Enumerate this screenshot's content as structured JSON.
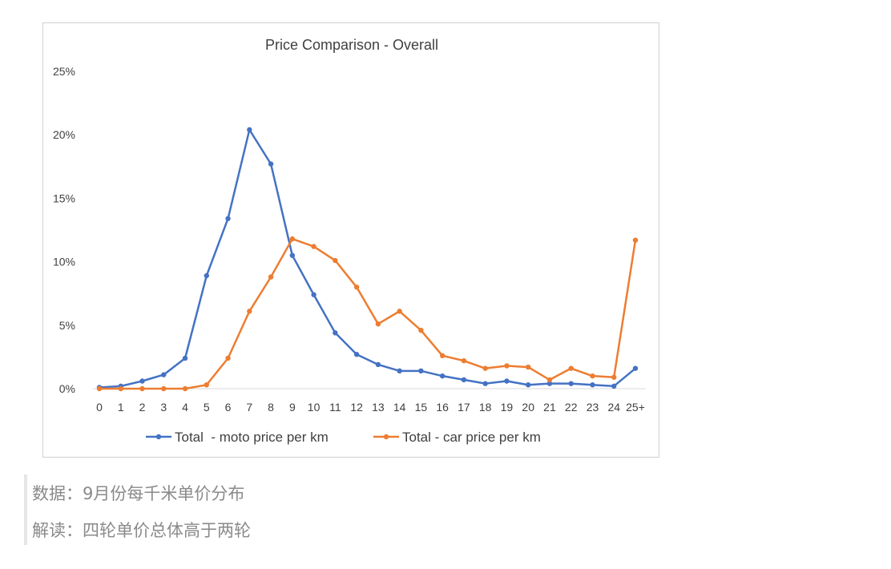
{
  "chart_data": {
    "type": "line",
    "title": "Price Comparison - Overall",
    "xlabel": "",
    "ylabel": "",
    "ylim": [
      0,
      25
    ],
    "y_ticks": [
      "0%",
      "5%",
      "10%",
      "15%",
      "20%",
      "25%"
    ],
    "y_tick_values": [
      0,
      5,
      10,
      15,
      20,
      25
    ],
    "categories": [
      "0",
      "1",
      "2",
      "3",
      "4",
      "5",
      "6",
      "7",
      "8",
      "9",
      "10",
      "11",
      "12",
      "13",
      "14",
      "15",
      "16",
      "17",
      "18",
      "19",
      "20",
      "21",
      "22",
      "23",
      "24",
      "25+"
    ],
    "legend_position": "bottom",
    "grid": false,
    "series": [
      {
        "name": "Total  - moto price per km",
        "color": "#4472C4",
        "values": [
          0.1,
          0.2,
          0.6,
          1.1,
          2.4,
          8.9,
          13.4,
          20.4,
          17.7,
          10.5,
          7.4,
          4.4,
          2.7,
          1.9,
          1.4,
          1.4,
          1.0,
          0.7,
          0.4,
          0.6,
          0.3,
          0.4,
          0.4,
          0.3,
          0.2,
          1.6
        ]
      },
      {
        "name": "Total - car price per km",
        "color": "#ED7D31",
        "values": [
          0.0,
          0.0,
          0.0,
          0.0,
          0.0,
          0.3,
          2.4,
          6.1,
          8.8,
          11.8,
          11.2,
          10.1,
          8.0,
          5.1,
          6.1,
          4.6,
          2.6,
          2.2,
          1.6,
          1.8,
          1.7,
          0.7,
          1.6,
          1.0,
          0.9,
          11.7
        ]
      }
    ]
  },
  "captions": {
    "line1": "数据：9月份每千米单价分布",
    "line2": "解读：四轮单价总体高于两轮"
  }
}
